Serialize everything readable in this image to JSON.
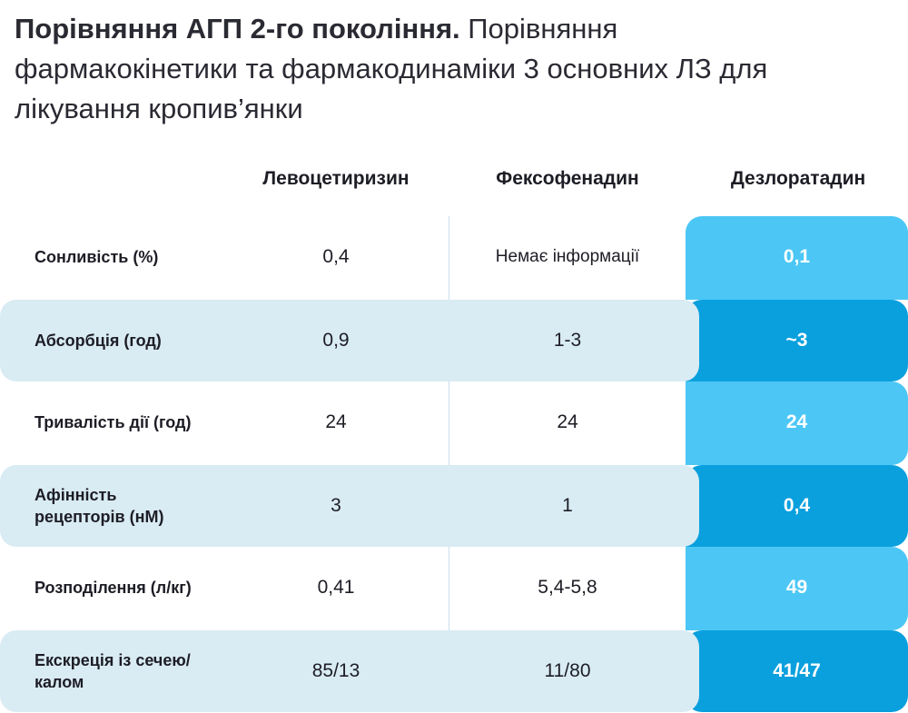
{
  "title": {
    "bold": "Порівняння АГП 2-го покоління.",
    "rest": " Порівняння фармакокінетики та фармакодинаміки 3 основних ЛЗ для лікування кропив’янки"
  },
  "columns": [
    "Левоцетиризин",
    "Фексофенадин",
    "Дезлоратадин"
  ],
  "rows": [
    {
      "label": "Сонливість (%)",
      "levo": "0,4",
      "fexo": "Немає інформації",
      "desl": "0,1"
    },
    {
      "label": "Абсорбція (год)",
      "levo": "0,9",
      "fexo": "1-3",
      "desl": "~3"
    },
    {
      "label": "Тривалість дії (год)",
      "levo": "24",
      "fexo": "24",
      "desl": "24"
    },
    {
      "label": "Афінність рецепторів (нМ)",
      "levo": "3",
      "fexo": "1",
      "desl": "0,4"
    },
    {
      "label": "Розподілення (л/кг)",
      "levo": "0,41",
      "fexo": "5,4-5,8",
      "desl": "49"
    },
    {
      "label": "Екскреція із сечею/ калом",
      "levo": "85/13",
      "fexo": "11/80",
      "desl": "41/47"
    }
  ],
  "colors": {
    "row_shade": "#d9ebf3",
    "highlight_light": "#4cc7f5",
    "highlight_dark": "#0aa0de"
  }
}
